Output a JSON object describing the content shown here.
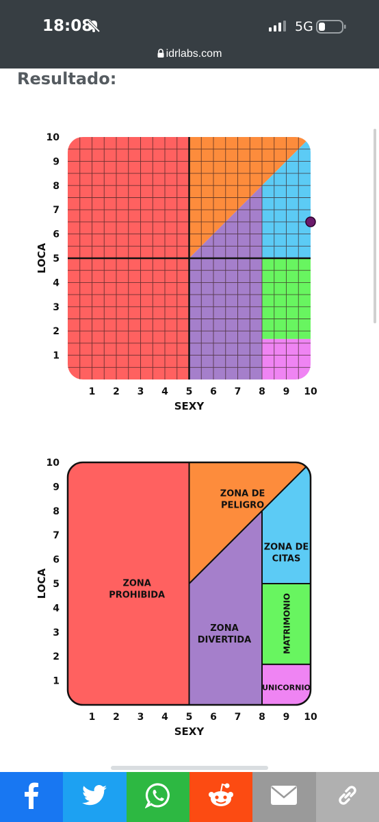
{
  "status_bar": {
    "time": "18:08",
    "network": "5G",
    "url": "idrlabs.com"
  },
  "page": {
    "heading": "Resultado:"
  },
  "chart_data": [
    {
      "type": "scatter",
      "xlabel": "SEXY",
      "ylabel": "LOCA",
      "xlim": [
        0,
        10
      ],
      "ylim": [
        0,
        10
      ],
      "x_ticks": [
        "1",
        "2",
        "3",
        "4",
        "5",
        "6",
        "7",
        "8",
        "9",
        "10"
      ],
      "y_ticks": [
        "1",
        "2",
        "3",
        "4",
        "5",
        "6",
        "7",
        "8",
        "9",
        "10"
      ],
      "grid": true,
      "grid_step": 0.5,
      "point": {
        "x": 10,
        "y": 6.5,
        "color": "#6b1a6b"
      }
    },
    {
      "type": "diagram",
      "xlabel": "SEXY",
      "ylabel": "LOCA",
      "xlim": [
        0,
        10
      ],
      "ylim": [
        0,
        10
      ],
      "x_ticks": [
        "1",
        "2",
        "3",
        "4",
        "5",
        "6",
        "7",
        "8",
        "9",
        "10"
      ],
      "y_ticks": [
        "1",
        "2",
        "3",
        "4",
        "5",
        "6",
        "7",
        "8",
        "9",
        "10"
      ],
      "zones": [
        {
          "lines": [
            "ZONA",
            "PROHIBIDA"
          ],
          "color": "#ff6160",
          "polygon": [
            [
              0,
              0
            ],
            [
              5,
              0
            ],
            [
              5,
              10
            ],
            [
              0,
              10
            ]
          ],
          "label_at": [
            2.85,
            4.8
          ]
        },
        {
          "lines": [
            "ZONA DE",
            "PELIGRO"
          ],
          "color": "#fd8c3c",
          "polygon": [
            [
              5,
              5
            ],
            [
              5,
              10
            ],
            [
              10,
              10
            ]
          ],
          "label_at": [
            7.2,
            8.5
          ]
        },
        {
          "lines": [
            "ZONA",
            "DIVERTIDA"
          ],
          "color": "#a57fcb",
          "polygon": [
            [
              5,
              0
            ],
            [
              5,
              5
            ],
            [
              8,
              8
            ],
            [
              8,
              0
            ]
          ],
          "label_at": [
            6.45,
            2.95
          ]
        },
        {
          "lines": [
            "ZONA DE",
            "CITAS"
          ],
          "color": "#5ccbf5",
          "polygon": [
            [
              8,
              5
            ],
            [
              8,
              8
            ],
            [
              10,
              10
            ],
            [
              10,
              5
            ]
          ],
          "label_at": [
            9.0,
            6.3
          ]
        },
        {
          "lines": [
            "MATRIMONIO"
          ],
          "color": "#68f560",
          "polygon": [
            [
              8,
              1.67
            ],
            [
              8,
              5
            ],
            [
              10,
              5
            ],
            [
              10,
              1.67
            ]
          ],
          "label_at": [
            9.0,
            3.35
          ],
          "vertical": true
        },
        {
          "lines": [
            "UNICORNIO"
          ],
          "color": "#ef84f3",
          "polygon": [
            [
              8,
              0
            ],
            [
              8,
              1.67
            ],
            [
              10,
              1.67
            ],
            [
              10,
              0
            ]
          ],
          "label_at": [
            9.0,
            0.75
          ]
        }
      ]
    }
  ],
  "colors": {
    "status_bar": "#373e43",
    "forbidden": "#ff6160",
    "danger": "#fd8c3c",
    "fun": "#a57fcb",
    "dating": "#5ccbf5",
    "marriage": "#68f560",
    "unicorn": "#ef84f3"
  },
  "share_buttons": [
    {
      "name": "facebook-share-button",
      "icon": "facebook-icon",
      "color": "#1877f2"
    },
    {
      "name": "twitter-share-button",
      "icon": "twitter-icon",
      "color": "#1da1f2"
    },
    {
      "name": "whatsapp-share-button",
      "icon": "whatsapp-icon",
      "color": "#2db842"
    },
    {
      "name": "reddit-share-button",
      "icon": "reddit-icon",
      "color": "#fc4b12"
    },
    {
      "name": "email-share-button",
      "icon": "mail-icon",
      "color": "#9a9a9a"
    },
    {
      "name": "copy-link-button",
      "icon": "link-icon",
      "color": "#b0b0b0"
    }
  ]
}
